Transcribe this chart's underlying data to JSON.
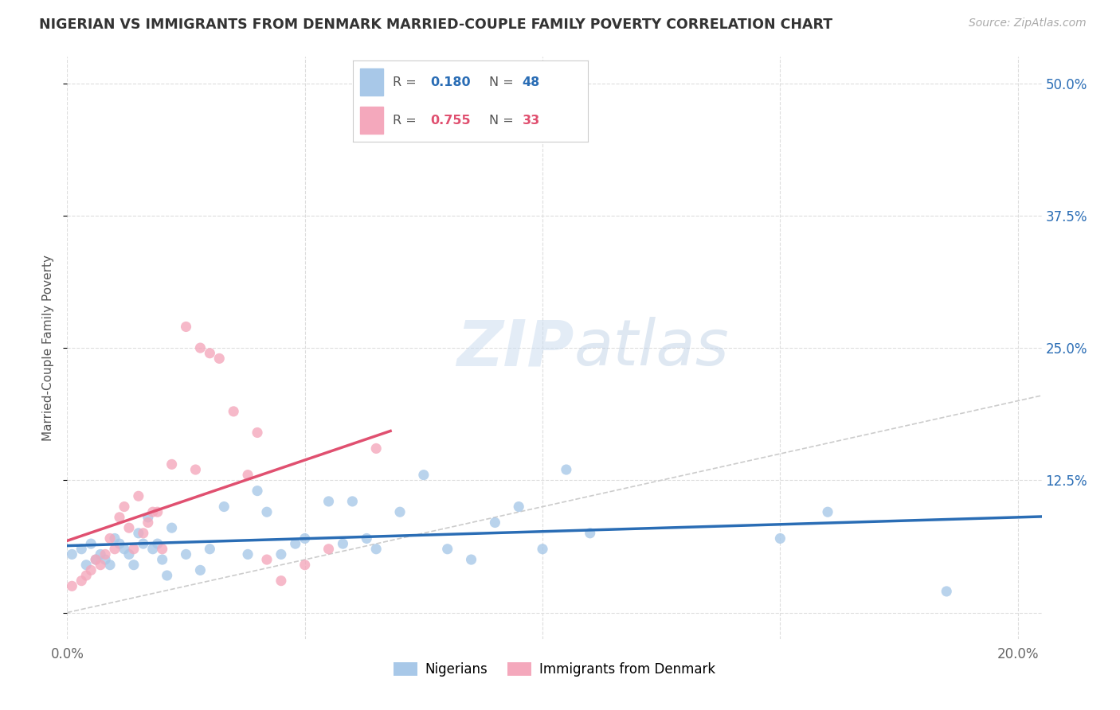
{
  "title": "NIGERIAN VS IMMIGRANTS FROM DENMARK MARRIED-COUPLE FAMILY POVERTY CORRELATION CHART",
  "source": "Source: ZipAtlas.com",
  "ylabel": "Married-Couple Family Poverty",
  "xlim": [
    0.0,
    0.205
  ],
  "ylim": [
    -0.025,
    0.525
  ],
  "x_ticks": [
    0.0,
    0.05,
    0.1,
    0.15,
    0.2
  ],
  "y_ticks": [
    0.0,
    0.125,
    0.25,
    0.375,
    0.5
  ],
  "watermark_zip": "ZIP",
  "watermark_atlas": "atlas",
  "nigerian_R": 0.18,
  "nigerian_N": 48,
  "denmark_R": 0.755,
  "denmark_N": 33,
  "nigerian_color": "#a8c8e8",
  "denmark_color": "#f4a8bc",
  "nigerian_line_color": "#2a6db5",
  "denmark_line_color": "#e05070",
  "diagonal_color": "#cccccc",
  "background_color": "#ffffff",
  "grid_color": "#dddddd",
  "nigerian_x": [
    0.001,
    0.003,
    0.004,
    0.005,
    0.006,
    0.007,
    0.008,
    0.009,
    0.01,
    0.011,
    0.012,
    0.013,
    0.014,
    0.015,
    0.016,
    0.017,
    0.018,
    0.019,
    0.02,
    0.021,
    0.022,
    0.025,
    0.028,
    0.03,
    0.033,
    0.038,
    0.04,
    0.042,
    0.045,
    0.048,
    0.05,
    0.055,
    0.058,
    0.06,
    0.063,
    0.065,
    0.07,
    0.075,
    0.08,
    0.085,
    0.09,
    0.095,
    0.1,
    0.105,
    0.11,
    0.15,
    0.16,
    0.185
  ],
  "nigerian_y": [
    0.055,
    0.06,
    0.045,
    0.065,
    0.05,
    0.055,
    0.05,
    0.045,
    0.07,
    0.065,
    0.06,
    0.055,
    0.045,
    0.075,
    0.065,
    0.09,
    0.06,
    0.065,
    0.05,
    0.035,
    0.08,
    0.055,
    0.04,
    0.06,
    0.1,
    0.055,
    0.115,
    0.095,
    0.055,
    0.065,
    0.07,
    0.105,
    0.065,
    0.105,
    0.07,
    0.06,
    0.095,
    0.13,
    0.06,
    0.05,
    0.085,
    0.1,
    0.06,
    0.135,
    0.075,
    0.07,
    0.095,
    0.02
  ],
  "denmark_x": [
    0.001,
    0.003,
    0.004,
    0.005,
    0.006,
    0.007,
    0.008,
    0.009,
    0.01,
    0.011,
    0.012,
    0.013,
    0.014,
    0.015,
    0.016,
    0.017,
    0.018,
    0.019,
    0.02,
    0.022,
    0.025,
    0.027,
    0.028,
    0.03,
    0.032,
    0.035,
    0.038,
    0.04,
    0.042,
    0.045,
    0.05,
    0.055,
    0.065
  ],
  "denmark_y": [
    0.025,
    0.03,
    0.035,
    0.04,
    0.05,
    0.045,
    0.055,
    0.07,
    0.06,
    0.09,
    0.1,
    0.08,
    0.06,
    0.11,
    0.075,
    0.085,
    0.095,
    0.095,
    0.06,
    0.14,
    0.27,
    0.135,
    0.25,
    0.245,
    0.24,
    0.19,
    0.13,
    0.17,
    0.05,
    0.03,
    0.045,
    0.06,
    0.155
  ],
  "den_line_x_start": 0.0,
  "den_line_x_end": 0.068,
  "nig_line_x_start": 0.0,
  "nig_line_x_end": 0.205
}
